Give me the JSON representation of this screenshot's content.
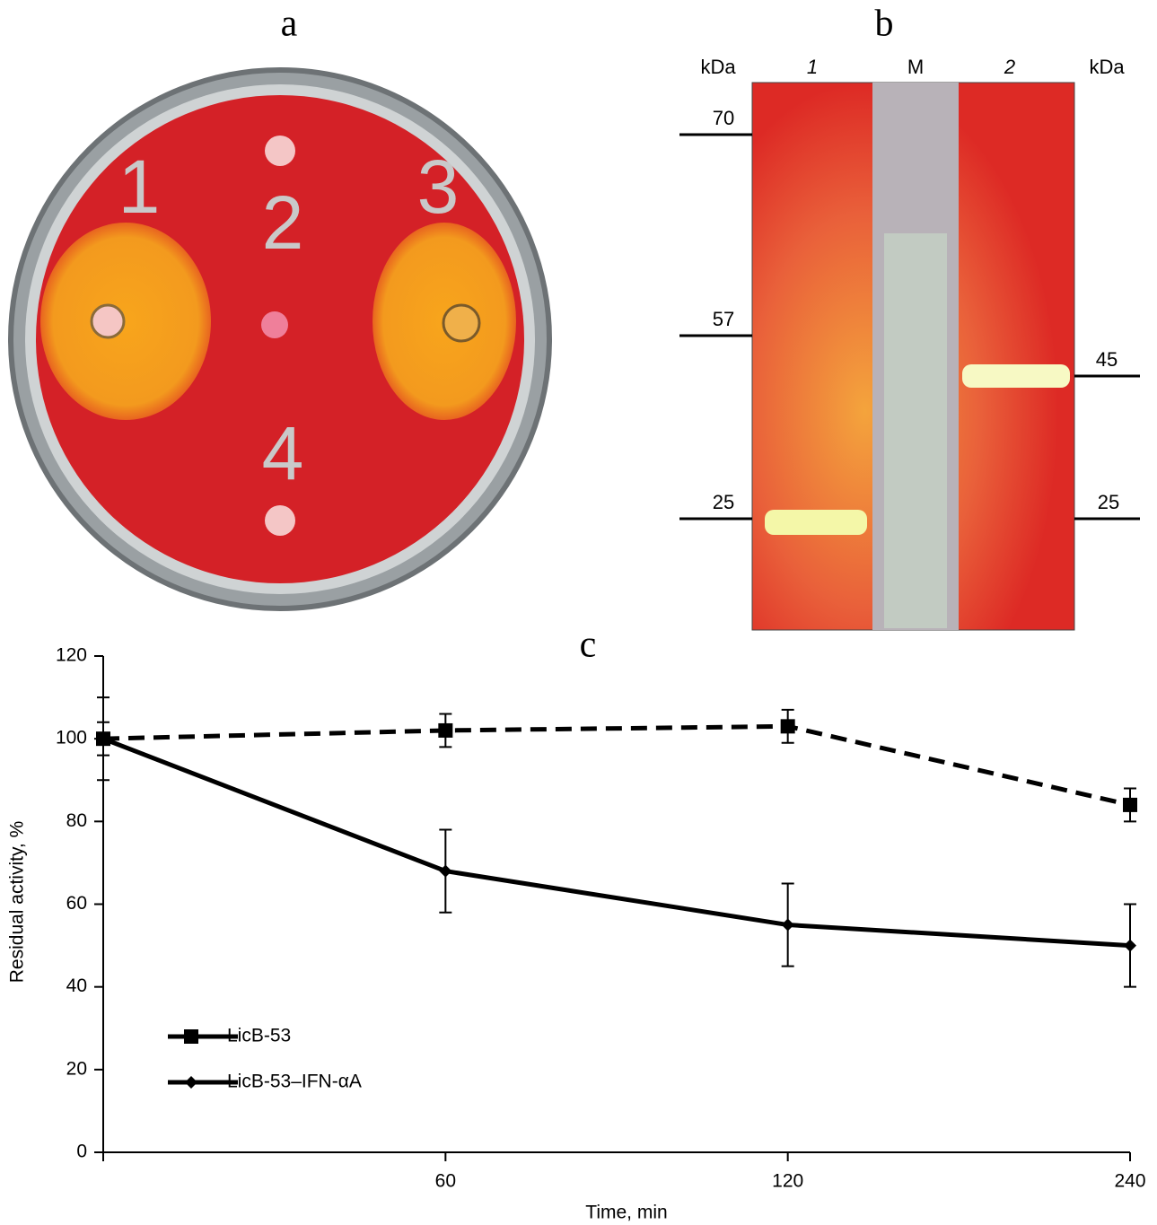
{
  "panels": {
    "a": {
      "label": "a",
      "wells": [
        "1",
        "2",
        "3",
        "4"
      ]
    },
    "b": {
      "label": "b",
      "left_unit": "kDa",
      "right_unit": "kDa",
      "lanes": [
        "1",
        "M",
        "2"
      ],
      "left_markers": [
        "70",
        "57",
        "25"
      ],
      "right_markers": [
        "45",
        "25"
      ]
    }
  },
  "chart_data": {
    "type": "line",
    "title": "c",
    "x_label": "Time, min",
    "y_label": "Residual activity, %",
    "categories": [
      null,
      60,
      120,
      240
    ],
    "ylim": [
      0,
      120
    ],
    "yticks": [
      0,
      20,
      40,
      60,
      80,
      100,
      120
    ],
    "legend": "bottom-left",
    "series": [
      {
        "name": "LicB-53",
        "color": "#000000",
        "dash": true,
        "marker": "square",
        "values": [
          100,
          102,
          103,
          84
        ],
        "errors": [
          4,
          4,
          4,
          4
        ]
      },
      {
        "name": "LicB-53–IFN-αA",
        "color": "#000000",
        "dash": false,
        "marker": "diamond",
        "values": [
          100,
          68,
          55,
          50
        ],
        "errors": [
          10,
          10,
          10,
          10
        ]
      }
    ]
  }
}
